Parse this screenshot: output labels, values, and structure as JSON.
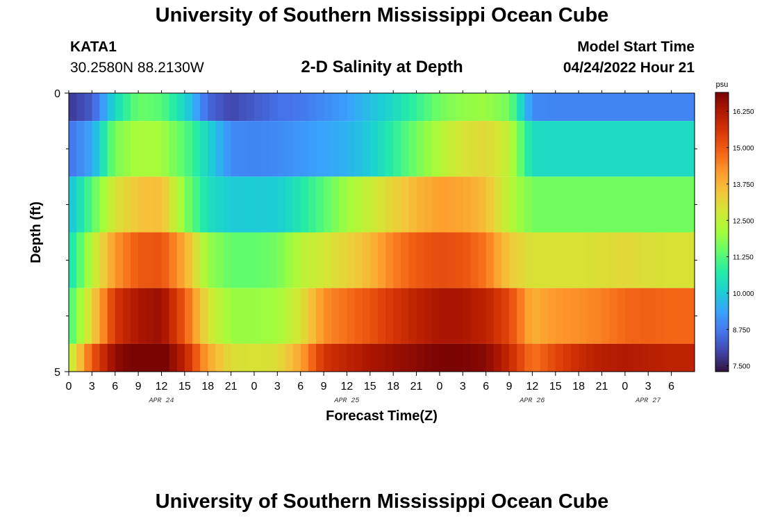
{
  "page": {
    "title": "University of Southern Mississippi Ocean Cube",
    "station_name": "KATA1",
    "station_coords": "30.2580N  88.2130W",
    "chart_title": "2-D Salinity at Depth",
    "model_start_label": "Model Start Time",
    "model_start_value": "04/24/2022 Hour 21",
    "bottom_title": "University of Southern Mississippi Ocean Cube"
  },
  "colors": {
    "scale": [
      "#30123b",
      "#4145ab",
      "#4675ed",
      "#39a2fc",
      "#1bcfd4",
      "#24eca6",
      "#61fc6c",
      "#a4fc3b",
      "#d1e834",
      "#f3c63a",
      "#fe9b2d",
      "#f36315",
      "#d93806",
      "#b11901",
      "#7a0403"
    ]
  },
  "chart_data": {
    "type": "heatmap",
    "title": "2-D Salinity at Depth",
    "xlabel": "Forecast Time(Z)",
    "ylabel": "Depth (ft)",
    "colorbar_label": "psu",
    "x_start_hour": 0,
    "x_end_hour": 81,
    "x_ticks": [
      {
        "hour": 0,
        "label": "0"
      },
      {
        "hour": 3,
        "label": "3"
      },
      {
        "hour": 6,
        "label": "6"
      },
      {
        "hour": 9,
        "label": "9"
      },
      {
        "hour": 12,
        "label": "12"
      },
      {
        "hour": 15,
        "label": "15"
      },
      {
        "hour": 18,
        "label": "18"
      },
      {
        "hour": 21,
        "label": "21"
      },
      {
        "hour": 24,
        "label": "0"
      },
      {
        "hour": 27,
        "label": "3"
      },
      {
        "hour": 30,
        "label": "6"
      },
      {
        "hour": 33,
        "label": "9"
      },
      {
        "hour": 36,
        "label": "12"
      },
      {
        "hour": 39,
        "label": "15"
      },
      {
        "hour": 42,
        "label": "18"
      },
      {
        "hour": 45,
        "label": "21"
      },
      {
        "hour": 48,
        "label": "0"
      },
      {
        "hour": 51,
        "label": "3"
      },
      {
        "hour": 54,
        "label": "6"
      },
      {
        "hour": 57,
        "label": "9"
      },
      {
        "hour": 60,
        "label": "12"
      },
      {
        "hour": 63,
        "label": "15"
      },
      {
        "hour": 66,
        "label": "18"
      },
      {
        "hour": 69,
        "label": "21"
      },
      {
        "hour": 72,
        "label": "0"
      },
      {
        "hour": 75,
        "label": "3"
      },
      {
        "hour": 78,
        "label": "6"
      }
    ],
    "date_labels": [
      {
        "hour": 12,
        "label": "APR 24"
      },
      {
        "hour": 36,
        "label": "APR 25"
      },
      {
        "hour": 60,
        "label": "APR 26"
      },
      {
        "hour": 75,
        "label": "APR 27"
      }
    ],
    "y_range": [
      0,
      5
    ],
    "y_tick_labels": [
      {
        "depth": 0,
        "label": "0"
      },
      {
        "depth": 5,
        "label": "5"
      }
    ],
    "y_minor_ticks": [
      1,
      2,
      3,
      4
    ],
    "depth_rows": [
      {
        "depth_top": 0.0,
        "depth_bottom": 0.5
      },
      {
        "depth_top": 0.5,
        "depth_bottom": 1.5
      },
      {
        "depth_top": 1.5,
        "depth_bottom": 2.5
      },
      {
        "depth_top": 2.5,
        "depth_bottom": 3.5
      },
      {
        "depth_top": 3.5,
        "depth_bottom": 4.5
      },
      {
        "depth_top": 4.5,
        "depth_bottom": 5.0
      }
    ],
    "time_keyframes": [
      0,
      3,
      6,
      9,
      12,
      15,
      18,
      21,
      24,
      27,
      30,
      33,
      36,
      39,
      42,
      45,
      48,
      51,
      54,
      57,
      60,
      63,
      66,
      69,
      72,
      75,
      78,
      81
    ],
    "salinity_keyframes": [
      [
        7.8,
        8.3,
        10.3,
        11.5,
        11.3,
        10.2,
        8.5,
        8.0,
        8.3,
        8.6,
        8.7,
        9.0,
        9.3,
        9.8,
        10.3,
        10.9,
        11.6,
        11.9,
        12.0,
        11.6,
        9.0,
        8.9,
        8.9,
        8.9,
        8.9,
        8.9,
        8.9,
        8.9
      ],
      [
        8.6,
        9.4,
        11.7,
        12.2,
        12.1,
        11.3,
        10.2,
        9.0,
        8.9,
        9.0,
        9.2,
        9.4,
        9.6,
        10.0,
        10.8,
        11.6,
        12.3,
        12.9,
        13.1,
        12.5,
        10.3,
        10.3,
        10.3,
        10.3,
        10.3,
        10.3,
        10.3,
        10.3
      ],
      [
        9.7,
        11.3,
        12.9,
        13.5,
        13.6,
        11.8,
        10.4,
        10.0,
        10.0,
        10.0,
        10.6,
        11.3,
        12.1,
        12.6,
        13.2,
        13.7,
        14.1,
        14.0,
        13.6,
        12.4,
        11.6,
        11.6,
        11.6,
        11.6,
        11.6,
        11.6,
        11.6,
        11.6
      ],
      [
        10.3,
        12.4,
        14.2,
        15.0,
        15.1,
        13.9,
        12.0,
        11.4,
        11.4,
        11.6,
        12.4,
        12.8,
        13.2,
        13.7,
        14.5,
        15.0,
        15.2,
        15.1,
        14.6,
        13.4,
        12.9,
        12.9,
        12.9,
        13.0,
        13.1,
        13.0,
        12.9,
        12.9
      ],
      [
        11.0,
        13.2,
        15.6,
        16.3,
        16.5,
        15.0,
        12.9,
        12.0,
        12.0,
        12.1,
        12.9,
        14.3,
        14.7,
        15.1,
        15.6,
        16.0,
        16.3,
        16.3,
        16.0,
        15.3,
        13.8,
        14.2,
        14.3,
        14.5,
        14.8,
        14.9,
        14.8,
        14.8
      ],
      [
        12.3,
        15.0,
        16.6,
        17.1,
        17.1,
        16.0,
        14.0,
        13.0,
        12.9,
        13.0,
        14.0,
        15.6,
        16.0,
        16.3,
        16.5,
        16.7,
        16.9,
        16.9,
        16.7,
        15.9,
        14.6,
        15.3,
        15.8,
        16.1,
        16.2,
        16.1,
        16.0,
        16.0
      ]
    ],
    "value_range": [
      7.3,
      16.9
    ],
    "colorbar_ticks": [
      {
        "value": 7.5,
        "label": "7.500"
      },
      {
        "value": 8.75,
        "label": "8.750"
      },
      {
        "value": 10.0,
        "label": "10.000"
      },
      {
        "value": 11.25,
        "label": "11.250"
      },
      {
        "value": 12.5,
        "label": "12.500"
      },
      {
        "value": 13.75,
        "label": "13.750"
      },
      {
        "value": 15.0,
        "label": "15.000"
      },
      {
        "value": 16.25,
        "label": "16.250"
      }
    ]
  }
}
